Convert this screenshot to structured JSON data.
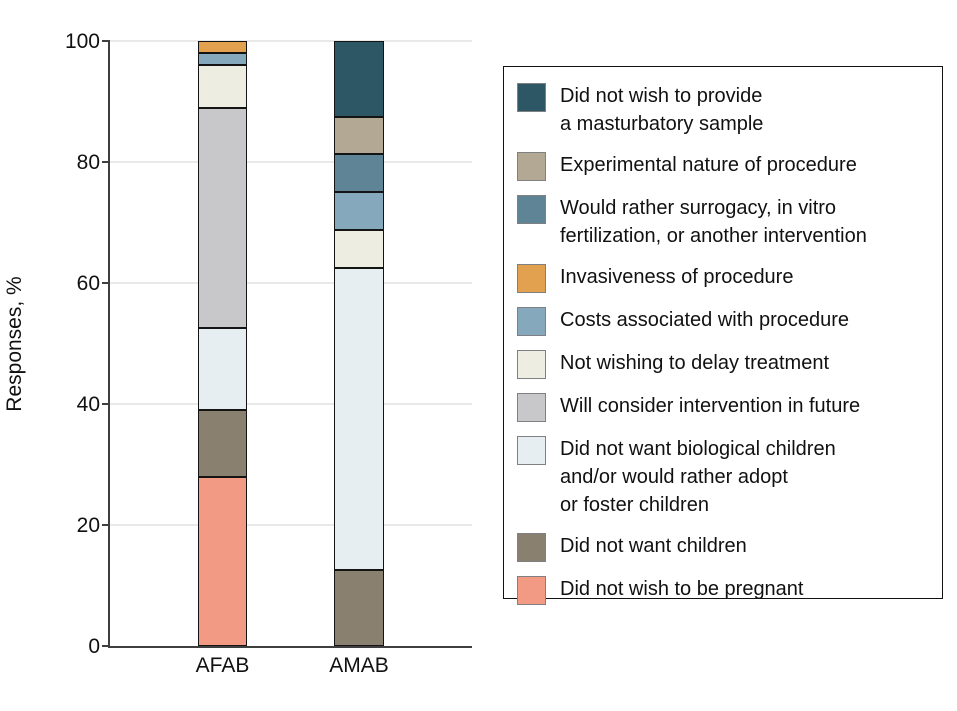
{
  "figure": {
    "y_axis": {
      "title": "Responses, %",
      "ticks": [
        "0",
        "20",
        "40",
        "60",
        "80",
        "100"
      ]
    },
    "x_axis": {
      "categories": [
        "AFAB",
        "AMAB"
      ]
    }
  },
  "chart_data": {
    "type": "bar",
    "stacked": true,
    "title": "",
    "xlabel": "",
    "ylabel": "Responses, %",
    "ylim": [
      0,
      100
    ],
    "grid": true,
    "legend_position": "right",
    "categories": [
      "AFAB",
      "AMAB"
    ],
    "series": [
      {
        "name": "Did not wish to be pregnant",
        "color": "#F39A85",
        "values": [
          28,
          0
        ]
      },
      {
        "name": "Did not want children",
        "color": "#8A8070",
        "values": [
          11,
          12.5
        ]
      },
      {
        "name": "Did not want biological children and/or would rather adopt or foster children",
        "color": "#E6EEF2",
        "values": [
          13.5,
          50
        ]
      },
      {
        "name": "Will consider intervention in future",
        "color": "#C8C8CA",
        "values": [
          36.5,
          0
        ]
      },
      {
        "name": "Not wishing to delay treatment",
        "color": "#EEEDE1",
        "values": [
          7,
          6.25
        ]
      },
      {
        "name": "Costs associated with procedure",
        "color": "#85A8BC",
        "values": [
          2,
          6.25
        ]
      },
      {
        "name": "Invasiveness of procedure",
        "color": "#E2A14F",
        "values": [
          2,
          0
        ]
      },
      {
        "name": "Would rather surrogacy, in vitro fertilization, or another intervention",
        "color": "#5E8495",
        "values": [
          0,
          6.25
        ]
      },
      {
        "name": "Experimental nature of procedure",
        "color": "#B3A894",
        "values": [
          0,
          6.25
        ]
      },
      {
        "name": "Did not wish to provide a masturbatory sample",
        "color": "#2E5765",
        "values": [
          0,
          12.5
        ]
      }
    ]
  },
  "legend": {
    "entries": [
      {
        "color": "#2E5765",
        "lines": [
          "Did not wish to provide",
          "a masturbatory sample"
        ]
      },
      {
        "color": "#B3A894",
        "lines": [
          "Experimental nature of procedure"
        ]
      },
      {
        "color": "#5E8495",
        "lines": [
          "Would rather surrogacy, in vitro",
          "fertilization, or another intervention"
        ]
      },
      {
        "color": "#E2A14F",
        "lines": [
          "Invasiveness of procedure"
        ]
      },
      {
        "color": "#85A8BC",
        "lines": [
          "Costs associated with procedure"
        ]
      },
      {
        "color": "#EEEDE1",
        "lines": [
          "Not wishing to delay treatment"
        ]
      },
      {
        "color": "#C8C8CA",
        "lines": [
          "Will consider intervention in future"
        ]
      },
      {
        "color": "#E6EEF2",
        "lines": [
          "Did not want biological children",
          "and/or would rather adopt",
          "or foster children"
        ]
      },
      {
        "color": "#8A8070",
        "lines": [
          "Did not want children"
        ]
      },
      {
        "color": "#F39A85",
        "lines": [
          "Did not wish to be pregnant"
        ]
      }
    ]
  }
}
